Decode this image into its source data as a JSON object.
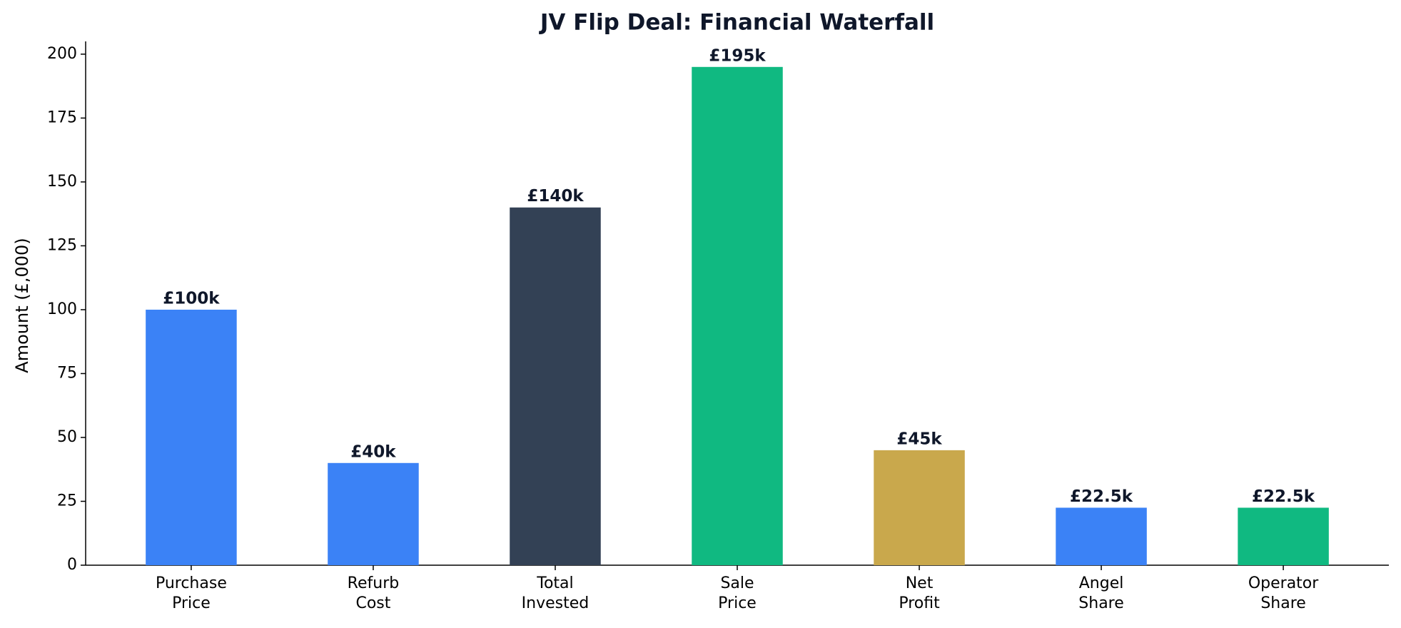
{
  "chart_data": {
    "type": "bar",
    "title": "JV Flip Deal: Financial Waterfall",
    "y_label": "Amount (£,000)",
    "categories": [
      "Purchase\nPrice",
      "Refurb\nCost",
      "Total\nInvested",
      "Sale\nPrice",
      "Net\nProfit",
      "Angel\nShare",
      "Operator\nShare"
    ],
    "values": [
      100,
      40,
      140,
      195,
      45,
      22.5,
      22.5
    ],
    "value_labels": [
      "£100k",
      "£40k",
      "£140k",
      "£195k",
      "£45k",
      "£22.5k",
      "£22.5k"
    ],
    "colors": [
      "#3b82f6",
      "#3b82f6",
      "#334155",
      "#10b981",
      "#c9a84c",
      "#3b82f6",
      "#10b981"
    ],
    "ylim": [
      0,
      205
    ],
    "yticks": [
      0,
      25,
      50,
      75,
      100,
      125,
      150,
      175,
      200
    ],
    "grid": false
  }
}
